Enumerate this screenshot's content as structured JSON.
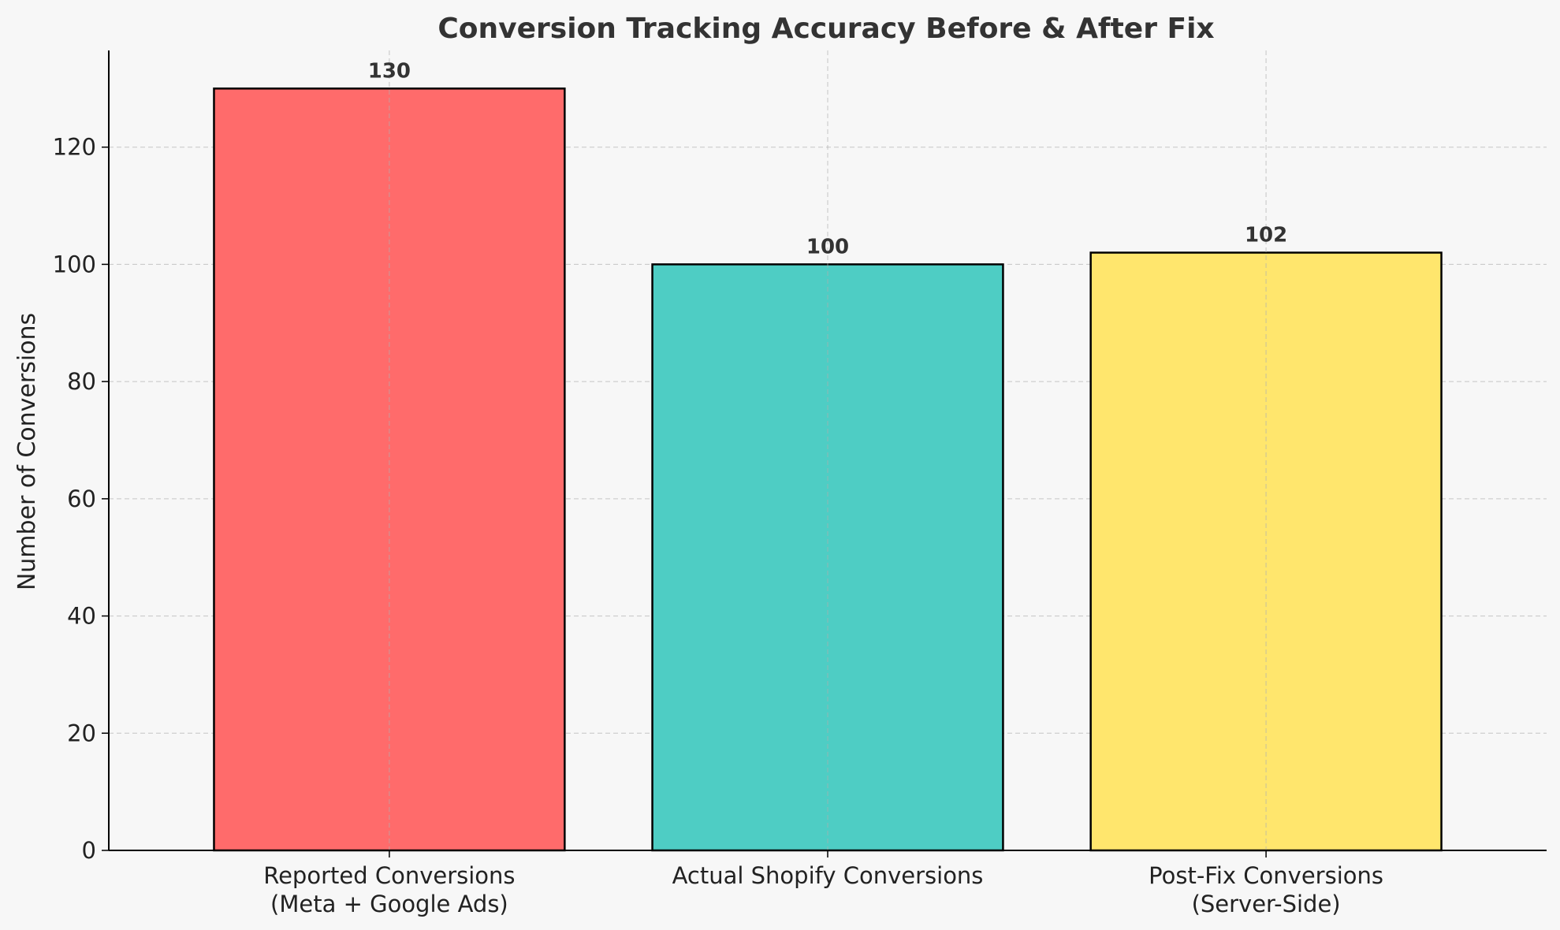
{
  "chart_data": {
    "type": "bar",
    "title": "Conversion Tracking Accuracy Before & After Fix",
    "xlabel": "",
    "ylabel": "Number of Conversions",
    "categories": [
      [
        "Reported Conversions",
        "(Meta + Google Ads)"
      ],
      [
        "Actual Shopify Conversions"
      ],
      [
        "Post-Fix Conversions",
        "(Server-Side)"
      ]
    ],
    "values": [
      130,
      100,
      102
    ],
    "data_labels": [
      "130",
      "100",
      "102"
    ],
    "colors": [
      "#ff6b6b",
      "#4ecdc4",
      "#ffe66d"
    ],
    "edge_color": "#000000",
    "ylim": [
      0,
      136.5
    ],
    "yticks": [
      0,
      20,
      40,
      60,
      80,
      100,
      120
    ],
    "grid": true,
    "legend": "none"
  }
}
